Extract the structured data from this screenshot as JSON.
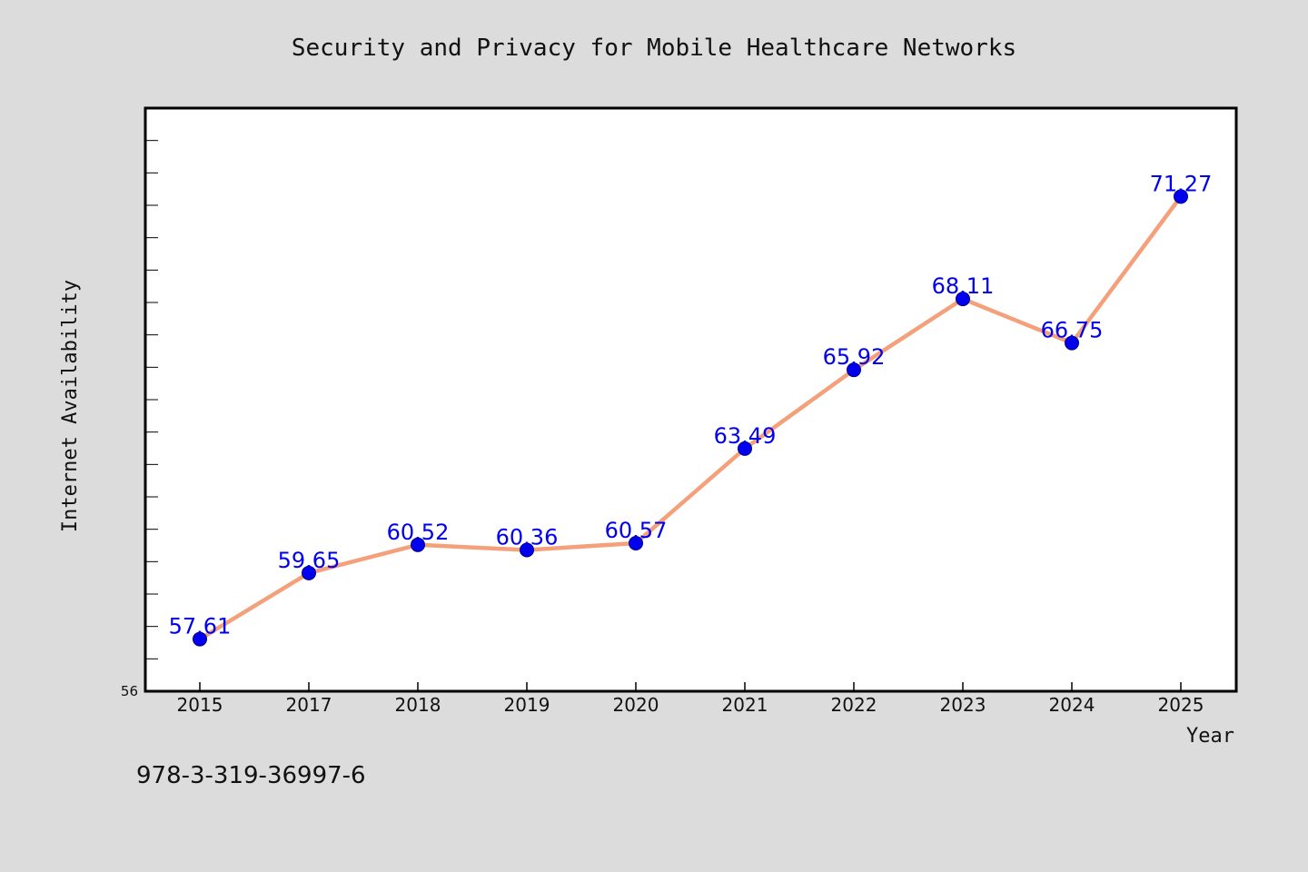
{
  "chart_data": {
    "type": "line",
    "title": "Security and Privacy for Mobile Healthcare Networks",
    "xlabel": "Year",
    "ylabel": "Internet Availability",
    "categories": [
      "2015",
      "2017",
      "2018",
      "2019",
      "2020",
      "2021",
      "2022",
      "2023",
      "2024",
      "2025"
    ],
    "series": [
      {
        "values": [
          57.61,
          59.65,
          60.52,
          60.36,
          60.57,
          63.49,
          65.92,
          68.11,
          66.75,
          71.27
        ],
        "labels": [
          "57.61",
          "59.65",
          "60.52",
          "60.36",
          "60.57",
          "63.49",
          "65.92",
          "68.11",
          "66.75",
          "71.27"
        ]
      }
    ],
    "ylim": [
      56,
      74
    ],
    "ytick_labels": [
      "56"
    ],
    "grid": false,
    "legend": "none",
    "line_color": "#f4a07a",
    "marker_color": "#0000ee",
    "label_color": "#0000ee",
    "plot_background": "#ffffff",
    "figure_background": "#dcdcdc"
  },
  "annotation": "978-3-319-36997-6"
}
